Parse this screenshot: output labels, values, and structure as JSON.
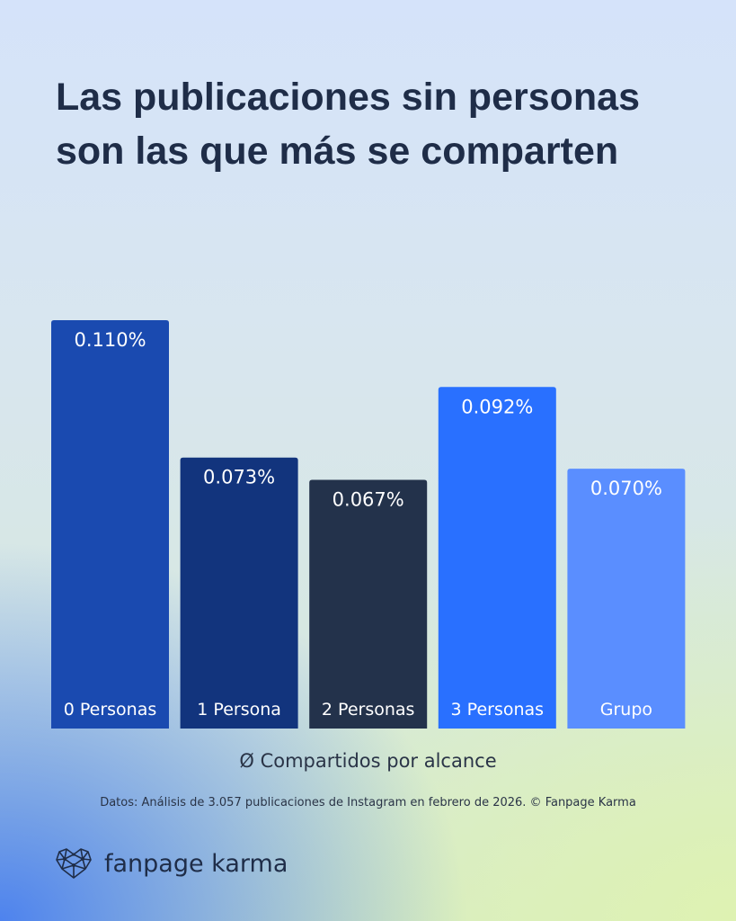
{
  "title": "Las publicaciones sin personas son las que más se comparten",
  "chart_data": {
    "type": "bar",
    "title": "Las publicaciones sin personas son las que más se comparten",
    "categories": [
      "0 Personas",
      "1 Persona",
      "2 Personas",
      "3 Personas",
      "Grupo"
    ],
    "values": [
      0.11,
      0.073,
      0.067,
      0.092,
      0.07
    ],
    "data_labels": [
      "0.110%",
      "0.073%",
      "0.067%",
      "0.092%",
      "0.070%"
    ],
    "colors": [
      "#1a4ab0",
      "#12347d",
      "#23324b",
      "#2970ff",
      "#5a8eff"
    ],
    "xlabel": "Ø Compartidos por alcance",
    "ylabel": "",
    "ylim": [
      0,
      0.11
    ],
    "grid": false,
    "unit": "%"
  },
  "source": "Datos: Análisis de 3.057 publicaciones de Instagram en febrero de 2026. © Fanpage Karma",
  "logo": {
    "text": "fanpage karma",
    "icon": "polygon-heart-icon"
  }
}
